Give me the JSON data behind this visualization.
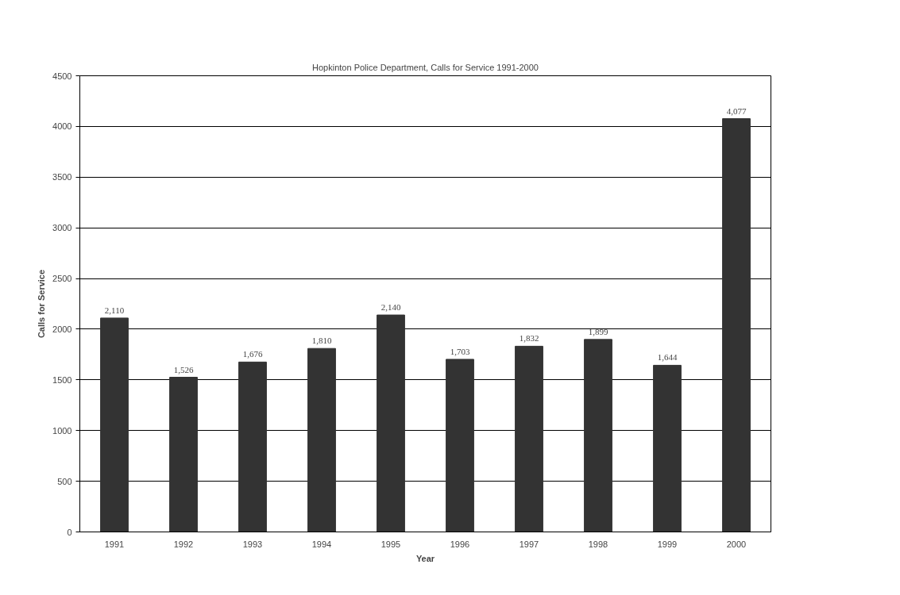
{
  "chart_data": {
    "type": "bar",
    "title": "Hopkinton Police Department, Calls for Service 1991-2000",
    "xlabel": "Year",
    "ylabel": "Calls for Service",
    "categories": [
      "1991",
      "1992",
      "1993",
      "1994",
      "1995",
      "1996",
      "1997",
      "1998",
      "1999",
      "2000"
    ],
    "values": [
      2110,
      1526,
      1676,
      1810,
      2140,
      1703,
      1832,
      1899,
      1644,
      4077
    ],
    "value_labels": [
      "2,110",
      "1,526",
      "1,676",
      "1,810",
      "2,140",
      "1,703",
      "1,832",
      "1,899",
      "1,644",
      "4,077"
    ],
    "color": "#333333",
    "ylim": [
      0,
      4500
    ],
    "yticks": [
      0,
      500,
      1000,
      1500,
      2000,
      2500,
      3000,
      3500,
      4000,
      4500
    ],
    "grid": "y"
  }
}
